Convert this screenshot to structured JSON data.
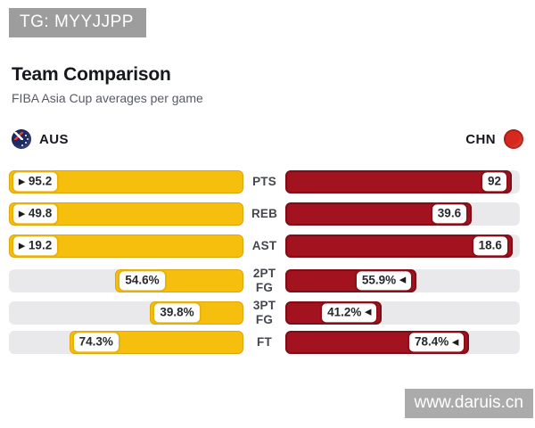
{
  "overlay": {
    "tg_badge": "TG: MYYJJPP",
    "watermark": "www.daruis.cn"
  },
  "header": {
    "title": "Team Comparison",
    "subtitle": "FIBA Asia Cup averages per game"
  },
  "teams": {
    "left": {
      "code": "AUS",
      "color": "#F6BE0D",
      "flag": "australia-flag"
    },
    "right": {
      "code": "CHN",
      "color": "#A3131F",
      "flag": "china-flag"
    }
  },
  "colors": {
    "aus_bar": "#F6BE0D",
    "chn_bar": "#A3131F",
    "track": "#E9E9EB",
    "badge_bg": "#FFFFFF"
  },
  "chart_data": {
    "type": "bar",
    "orientation": "horizontal-diverging",
    "title": "Team Comparison",
    "subtitle": "FIBA Asia Cup averages per game",
    "categories": [
      "PTS",
      "REB",
      "AST",
      "2PT FG",
      "3PT FG",
      "FT"
    ],
    "label_lines": [
      [
        "PTS"
      ],
      [
        "REB"
      ],
      [
        "AST"
      ],
      [
        "2PT",
        "FG"
      ],
      [
        "3PT",
        "FG"
      ],
      [
        "FT"
      ]
    ],
    "units": [
      "",
      "",
      "",
      "%",
      "%",
      "%"
    ],
    "series": [
      {
        "name": "AUS",
        "color": "#F6BE0D",
        "values": [
          95.2,
          49.8,
          19.2,
          54.6,
          39.8,
          74.3
        ],
        "displays": [
          "95.2",
          "49.8",
          "19.2",
          "54.6%",
          "39.8%",
          "74.3%"
        ]
      },
      {
        "name": "CHN",
        "color": "#A3131F",
        "values": [
          92,
          39.6,
          18.6,
          55.9,
          41.2,
          78.4
        ],
        "displays": [
          "92",
          "39.6",
          "18.6",
          "55.9%",
          "41.2%",
          "78.4%"
        ]
      }
    ],
    "leaders": [
      "AUS",
      "AUS",
      "AUS",
      "CHN",
      "CHN",
      "CHN"
    ],
    "legend_position": "top",
    "grid": false
  }
}
